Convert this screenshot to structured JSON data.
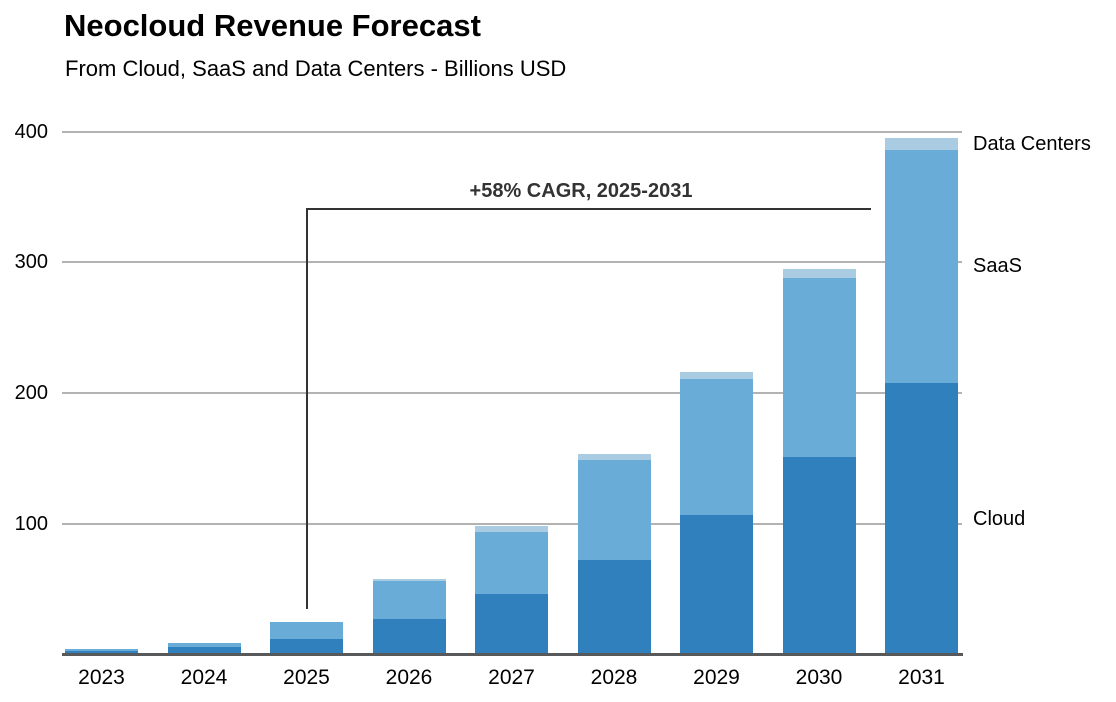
{
  "title": "Neocloud Revenue Forecast",
  "subtitle": "From Cloud, SaaS and Data Centers - Billions USD",
  "annotation": {
    "text": "+58% CAGR, 2025-2031"
  },
  "colors": {
    "cloud": "#3080bd",
    "saas": "#6aacd8",
    "data_centers": "#a9cce3",
    "gridline": "#b3b3b3",
    "axis": "#58595b",
    "annotation": "#333333"
  },
  "chart_data": {
    "type": "bar",
    "stacked": true,
    "title": "Neocloud Revenue Forecast",
    "subtitle": "From Cloud, SaaS and Data Centers - Billions USD",
    "unit": "Billions USD",
    "categories": [
      "2023",
      "2024",
      "2025",
      "2026",
      "2027",
      "2028",
      "2029",
      "2030",
      "2031"
    ],
    "series": [
      {
        "name": "Cloud",
        "color": "#3080bd",
        "values": [
          3,
          6,
          12,
          27,
          46,
          72,
          107,
          151,
          208
        ]
      },
      {
        "name": "SaaS",
        "color": "#6aacd8",
        "values": [
          1,
          3,
          13,
          29,
          48,
          77,
          104,
          137,
          178
        ]
      },
      {
        "name": "Data Centers",
        "color": "#a9cce3",
        "values": [
          0,
          0,
          0,
          2,
          4,
          4,
          5,
          7,
          9
        ]
      }
    ],
    "totals": [
      4,
      9,
      25,
      58,
      98,
      153,
      216,
      295,
      395
    ],
    "ylim": [
      0,
      400
    ],
    "yticks": [
      100,
      200,
      300,
      400
    ],
    "grid": true,
    "legend_position": "right-of-last-bar",
    "annotation": "+58% CAGR, 2025-2031"
  }
}
